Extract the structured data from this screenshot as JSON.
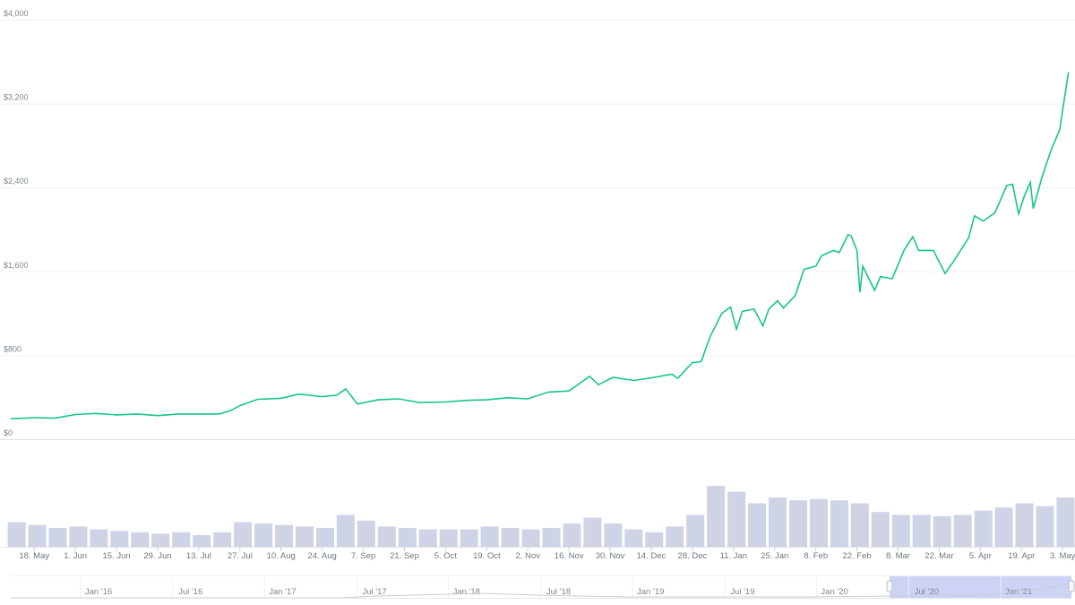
{
  "chart_data": {
    "type": "line",
    "title": "",
    "xlabel": "",
    "ylabel": "",
    "ylim": [
      0,
      4000
    ],
    "xlim": [
      "2020-05-10",
      "2021-05-06"
    ],
    "y_ticks": [
      "$0",
      "$800",
      "$1,600",
      "$2,400",
      "$3,200",
      "$4,000"
    ],
    "y_tick_values": [
      0,
      800,
      1600,
      2400,
      3200,
      4000
    ],
    "grid": true,
    "legend": "none",
    "line_color": "#16c784",
    "volume_color": "#cfd3e6",
    "x_ticks": [
      {
        "date": "2020-05-18",
        "label": "18. May"
      },
      {
        "date": "2020-06-01",
        "label": "1. Jun"
      },
      {
        "date": "2020-06-15",
        "label": "15. Jun"
      },
      {
        "date": "2020-06-29",
        "label": "29. Jun"
      },
      {
        "date": "2020-07-13",
        "label": "13. Jul"
      },
      {
        "date": "2020-07-27",
        "label": "27. Jul"
      },
      {
        "date": "2020-08-10",
        "label": "10. Aug"
      },
      {
        "date": "2020-08-24",
        "label": "24. Aug"
      },
      {
        "date": "2020-09-07",
        "label": "7. Sep"
      },
      {
        "date": "2020-09-21",
        "label": "21. Sep"
      },
      {
        "date": "2020-10-05",
        "label": "5. Oct"
      },
      {
        "date": "2020-10-19",
        "label": "19. Oct"
      },
      {
        "date": "2020-11-02",
        "label": "2. Nov"
      },
      {
        "date": "2020-11-16",
        "label": "16. Nov"
      },
      {
        "date": "2020-11-30",
        "label": "30. Nov"
      },
      {
        "date": "2020-12-14",
        "label": "14. Dec"
      },
      {
        "date": "2020-12-28",
        "label": "28. Dec"
      },
      {
        "date": "2021-01-11",
        "label": "11. Jan"
      },
      {
        "date": "2021-01-25",
        "label": "25. Jan"
      },
      {
        "date": "2021-02-08",
        "label": "8. Feb"
      },
      {
        "date": "2021-02-22",
        "label": "22. Feb"
      },
      {
        "date": "2021-03-08",
        "label": "8. Mar"
      },
      {
        "date": "2021-03-22",
        "label": "22. Mar"
      },
      {
        "date": "2021-04-05",
        "label": "5. Apr"
      },
      {
        "date": "2021-04-19",
        "label": "19. Apr"
      },
      {
        "date": "2021-05-03",
        "label": "3. May"
      }
    ],
    "series": [
      {
        "type": "line",
        "points": [
          [
            "2020-05-10",
            195
          ],
          [
            "2020-05-18",
            205
          ],
          [
            "2020-05-25",
            200
          ],
          [
            "2020-06-01",
            235
          ],
          [
            "2020-06-08",
            245
          ],
          [
            "2020-06-15",
            232
          ],
          [
            "2020-06-22",
            240
          ],
          [
            "2020-06-29",
            225
          ],
          [
            "2020-07-06",
            240
          ],
          [
            "2020-07-13",
            240
          ],
          [
            "2020-07-20",
            240
          ],
          [
            "2020-07-24",
            275
          ],
          [
            "2020-07-27",
            320
          ],
          [
            "2020-08-02",
            380
          ],
          [
            "2020-08-10",
            390
          ],
          [
            "2020-08-16",
            430
          ],
          [
            "2020-08-24",
            405
          ],
          [
            "2020-08-29",
            420
          ],
          [
            "2020-09-01",
            480
          ],
          [
            "2020-09-05",
            335
          ],
          [
            "2020-09-12",
            375
          ],
          [
            "2020-09-19",
            385
          ],
          [
            "2020-09-26",
            350
          ],
          [
            "2020-10-05",
            355
          ],
          [
            "2020-10-12",
            370
          ],
          [
            "2020-10-19",
            375
          ],
          [
            "2020-10-26",
            395
          ],
          [
            "2020-11-02",
            385
          ],
          [
            "2020-11-09",
            450
          ],
          [
            "2020-11-16",
            460
          ],
          [
            "2020-11-23",
            600
          ],
          [
            "2020-11-26",
            520
          ],
          [
            "2020-12-01",
            590
          ],
          [
            "2020-12-08",
            560
          ],
          [
            "2020-12-14",
            585
          ],
          [
            "2020-12-21",
            620
          ],
          [
            "2020-12-23",
            580
          ],
          [
            "2020-12-28",
            730
          ],
          [
            "2020-12-31",
            740
          ],
          [
            "2021-01-03",
            975
          ],
          [
            "2021-01-07",
            1200
          ],
          [
            "2021-01-10",
            1260
          ],
          [
            "2021-01-12",
            1050
          ],
          [
            "2021-01-14",
            1220
          ],
          [
            "2021-01-18",
            1240
          ],
          [
            "2021-01-21",
            1080
          ],
          [
            "2021-01-23",
            1240
          ],
          [
            "2021-01-26",
            1320
          ],
          [
            "2021-01-28",
            1250
          ],
          [
            "2021-02-01",
            1370
          ],
          [
            "2021-02-04",
            1620
          ],
          [
            "2021-02-08",
            1650
          ],
          [
            "2021-02-10",
            1750
          ],
          [
            "2021-02-14",
            1800
          ],
          [
            "2021-02-16",
            1780
          ],
          [
            "2021-02-19",
            1950
          ],
          [
            "2021-02-20",
            1940
          ],
          [
            "2021-02-22",
            1800
          ],
          [
            "2021-02-23",
            1400
          ],
          [
            "2021-02-24",
            1650
          ],
          [
            "2021-02-28",
            1420
          ],
          [
            "2021-03-02",
            1550
          ],
          [
            "2021-03-06",
            1530
          ],
          [
            "2021-03-10",
            1800
          ],
          [
            "2021-03-13",
            1930
          ],
          [
            "2021-03-15",
            1800
          ],
          [
            "2021-03-20",
            1800
          ],
          [
            "2021-03-24",
            1580
          ],
          [
            "2021-03-27",
            1700
          ],
          [
            "2021-04-01",
            1920
          ],
          [
            "2021-04-03",
            2130
          ],
          [
            "2021-04-06",
            2080
          ],
          [
            "2021-04-10",
            2160
          ],
          [
            "2021-04-14",
            2420
          ],
          [
            "2021-04-16",
            2430
          ],
          [
            "2021-04-18",
            2150
          ],
          [
            "2021-04-20",
            2320
          ],
          [
            "2021-04-22",
            2450
          ],
          [
            "2021-04-23",
            2200
          ],
          [
            "2021-04-26",
            2500
          ],
          [
            "2021-04-29",
            2750
          ],
          [
            "2021-05-02",
            2950
          ],
          [
            "2021-05-05",
            3500
          ]
        ]
      },
      {
        "type": "bar",
        "name": "",
        "unit": "USD billions (approx.)",
        "max": 60,
        "points": [
          [
            "2020-05-12",
            17
          ],
          [
            "2020-05-19",
            15
          ],
          [
            "2020-05-26",
            13
          ],
          [
            "2020-06-02",
            14
          ],
          [
            "2020-06-09",
            12
          ],
          [
            "2020-06-16",
            11
          ],
          [
            "2020-06-23",
            10
          ],
          [
            "2020-06-30",
            9
          ],
          [
            "2020-07-07",
            10
          ],
          [
            "2020-07-14",
            8
          ],
          [
            "2020-07-21",
            10
          ],
          [
            "2020-07-28",
            17
          ],
          [
            "2020-08-04",
            16
          ],
          [
            "2020-08-11",
            15
          ],
          [
            "2020-08-18",
            14
          ],
          [
            "2020-08-25",
            13
          ],
          [
            "2020-09-01",
            22
          ],
          [
            "2020-09-08",
            18
          ],
          [
            "2020-09-15",
            14
          ],
          [
            "2020-09-22",
            13
          ],
          [
            "2020-09-29",
            12
          ],
          [
            "2020-10-06",
            12
          ],
          [
            "2020-10-13",
            12
          ],
          [
            "2020-10-20",
            14
          ],
          [
            "2020-10-27",
            13
          ],
          [
            "2020-11-03",
            12
          ],
          [
            "2020-11-10",
            13
          ],
          [
            "2020-11-17",
            16
          ],
          [
            "2020-11-24",
            20
          ],
          [
            "2020-12-01",
            16
          ],
          [
            "2020-12-08",
            12
          ],
          [
            "2020-12-15",
            10
          ],
          [
            "2020-12-22",
            14
          ],
          [
            "2020-12-29",
            22
          ],
          [
            "2021-01-05",
            42
          ],
          [
            "2021-01-12",
            38
          ],
          [
            "2021-01-19",
            30
          ],
          [
            "2021-01-26",
            34
          ],
          [
            "2021-02-02",
            32
          ],
          [
            "2021-02-09",
            33
          ],
          [
            "2021-02-16",
            32
          ],
          [
            "2021-02-23",
            30
          ],
          [
            "2021-03-02",
            24
          ],
          [
            "2021-03-09",
            22
          ],
          [
            "2021-03-16",
            22
          ],
          [
            "2021-03-23",
            21
          ],
          [
            "2021-03-30",
            22
          ],
          [
            "2021-04-06",
            25
          ],
          [
            "2021-04-13",
            27
          ],
          [
            "2021-04-20",
            30
          ],
          [
            "2021-04-27",
            28
          ],
          [
            "2021-05-04",
            34
          ]
        ]
      }
    ],
    "navigator": {
      "labels": [
        "Jan '16",
        "Jul '16",
        "Jan '17",
        "Jul '17",
        "Jan '18",
        "Jul '18",
        "Jan '19",
        "Jul '19",
        "Jan '20",
        "Jul '20",
        "Jan '21"
      ],
      "selected_range": [
        "2020-05-10",
        "2021-05-06"
      ],
      "selection_color": "#c5cbf5"
    }
  }
}
